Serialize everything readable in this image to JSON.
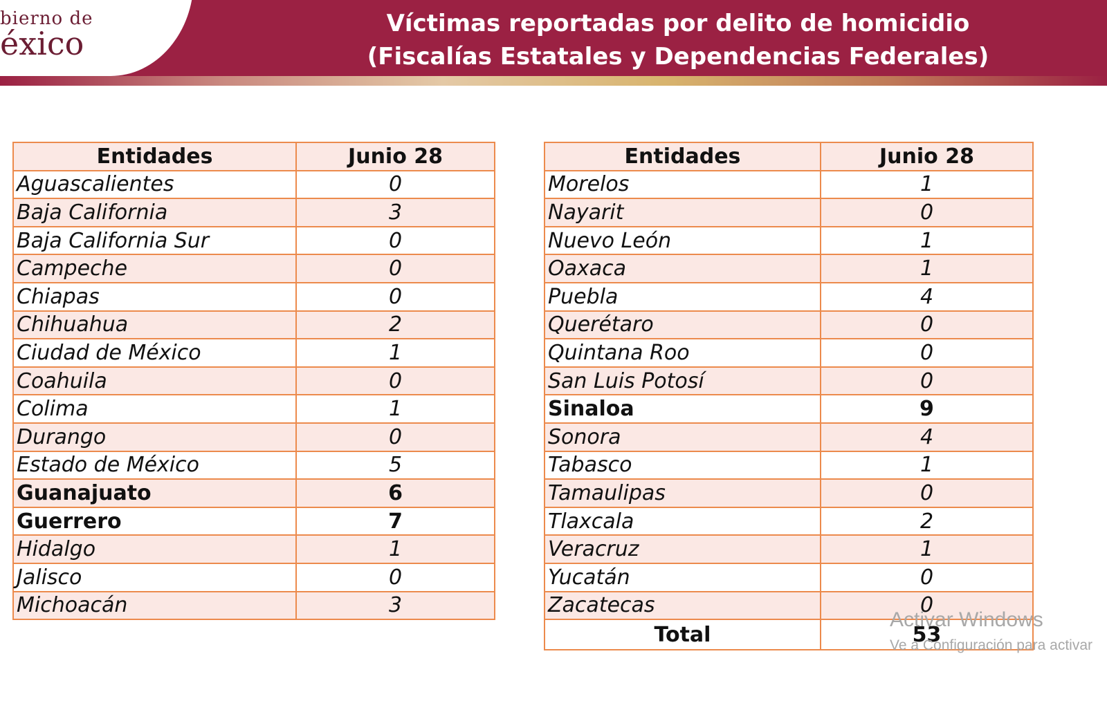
{
  "header": {
    "logo_line1": "bierno de",
    "logo_line2": "éxico",
    "title_line1": "Víctimas reportadas por delito de homicidio",
    "title_line2": "(Fiscalías Estatales y Dependencias Federales)",
    "colors": {
      "primary": "#9b2143",
      "accent_border": "#ec8a4c",
      "row_alt": "#fbe8e4"
    }
  },
  "left_table": {
    "col1_header": "Entidades",
    "col2_header": "Junio 28",
    "rows": [
      {
        "name": "Aguascalientes",
        "value": "0"
      },
      {
        "name": "Baja California",
        "value": "3"
      },
      {
        "name": "Baja California Sur",
        "value": "0"
      },
      {
        "name": "Campeche",
        "value": "0"
      },
      {
        "name": "Chiapas",
        "value": "0"
      },
      {
        "name": "Chihuahua",
        "value": "2"
      },
      {
        "name": "Ciudad de México",
        "value": "1"
      },
      {
        "name": "Coahuila",
        "value": "0"
      },
      {
        "name": "Colima",
        "value": "1"
      },
      {
        "name": "Durango",
        "value": "0"
      },
      {
        "name": "Estado de México",
        "value": "5"
      },
      {
        "name": "Guanajuato",
        "value": "6"
      },
      {
        "name": "Guerrero",
        "value": "7"
      },
      {
        "name": "Hidalgo",
        "value": "1"
      },
      {
        "name": "Jalisco",
        "value": "0"
      },
      {
        "name": "Michoacán",
        "value": "3"
      }
    ]
  },
  "right_table": {
    "col1_header": "Entidades",
    "col2_header": "Junio 28",
    "rows": [
      {
        "name": "Morelos",
        "value": "1"
      },
      {
        "name": "Nayarit",
        "value": "0"
      },
      {
        "name": "Nuevo León",
        "value": "1"
      },
      {
        "name": "Oaxaca",
        "value": "1"
      },
      {
        "name": "Puebla",
        "value": "4"
      },
      {
        "name": "Querétaro",
        "value": "0"
      },
      {
        "name": "Quintana Roo",
        "value": "0"
      },
      {
        "name": "San Luis Potosí",
        "value": "0"
      },
      {
        "name": "Sinaloa",
        "value": "9"
      },
      {
        "name": "Sonora",
        "value": "4"
      },
      {
        "name": "Tabasco",
        "value": "1"
      },
      {
        "name": "Tamaulipas",
        "value": "0"
      },
      {
        "name": "Tlaxcala",
        "value": "2"
      },
      {
        "name": "Veracruz",
        "value": "1"
      },
      {
        "name": "Yucatán",
        "value": "0"
      },
      {
        "name": "Zacatecas",
        "value": "0"
      }
    ],
    "total_label": "Total",
    "total_value": "53"
  },
  "watermark": {
    "line1": "Activar Windows",
    "line2": "Ve a Configuración para activar"
  }
}
